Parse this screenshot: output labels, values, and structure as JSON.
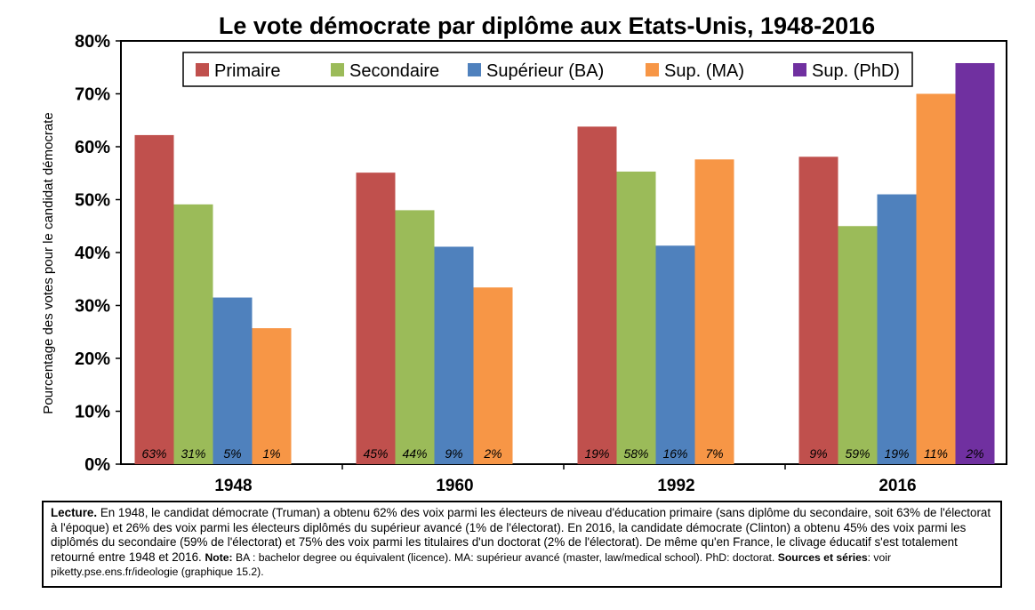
{
  "chart_data": {
    "type": "bar",
    "title": "Le vote démocrate par diplôme aux Etats-Unis, 1948-2016",
    "ylabel": "Pourcentage des votes pour le candidat démocrate",
    "xlabel": "",
    "ylim": [
      0,
      0.8
    ],
    "yticks": [
      "0%",
      "10%",
      "20%",
      "30%",
      "40%",
      "50%",
      "60%",
      "70%",
      "80%"
    ],
    "categories": [
      "1948",
      "1960",
      "1992",
      "2016"
    ],
    "legend_position": "top",
    "grid": false,
    "series": [
      {
        "name": "Primaire",
        "color": "#c0504d",
        "values": [
          0.622,
          0.551,
          0.638,
          0.581
        ],
        "labels": [
          "63%",
          "45%",
          "19%",
          "9%"
        ]
      },
      {
        "name": "Secondaire",
        "color": "#9bbb59",
        "values": [
          0.491,
          0.48,
          0.553,
          0.45
        ],
        "labels": [
          "31%",
          "44%",
          "58%",
          "59%"
        ]
      },
      {
        "name": "Supérieur (BA)",
        "color": "#4f81bd",
        "values": [
          0.315,
          0.411,
          0.413,
          0.51
        ],
        "labels": [
          "5%",
          "9%",
          "16%",
          "19%"
        ]
      },
      {
        "name": "Sup. (MA)",
        "color": "#f79646",
        "values": [
          0.257,
          0.334,
          0.576,
          0.7
        ],
        "labels": [
          "1%",
          "2%",
          "7%",
          "11%"
        ]
      },
      {
        "name": "Sup. (PhD)",
        "color": "#7030a0",
        "values": [
          null,
          null,
          null,
          0.758
        ],
        "labels": [
          "",
          "",
          "",
          "2%"
        ]
      }
    ]
  },
  "caption": {
    "lecture_bold": "Lecture.",
    "lecture_text": " En 1948, le candidat démocrate (Truman) a obtenu 62% des voix parmi les électeurs de niveau d'éducation primaire (sans diplôme du secondaire, soit 63% de l'électorat à l'époque) et 26% des voix parmi les électeurs diplômés du supérieur avancé (1% de l'électorat). En 2016, la candidate démocrate (Clinton) a obtenu 45% des voix parmi les diplômés du secondaire (59% de l'électorat) et 75% des voix parmi les titulaires d'un doctorat (2% de l'électorat). De même qu'en France, le clivage éducatif s'est totalement retourné entre 1948 et 2016. ",
    "note_bold": "Note:",
    "note_text": " BA : bachelor degree ou équivalent (licence). MA: supérieur avancé (master, law/medical school). PhD: doctorat.   ",
    "sources_bold": "Sources et séries",
    "sources_text": ": voir piketty.pse.ens.fr/ideologie (graphique 15.2)."
  }
}
